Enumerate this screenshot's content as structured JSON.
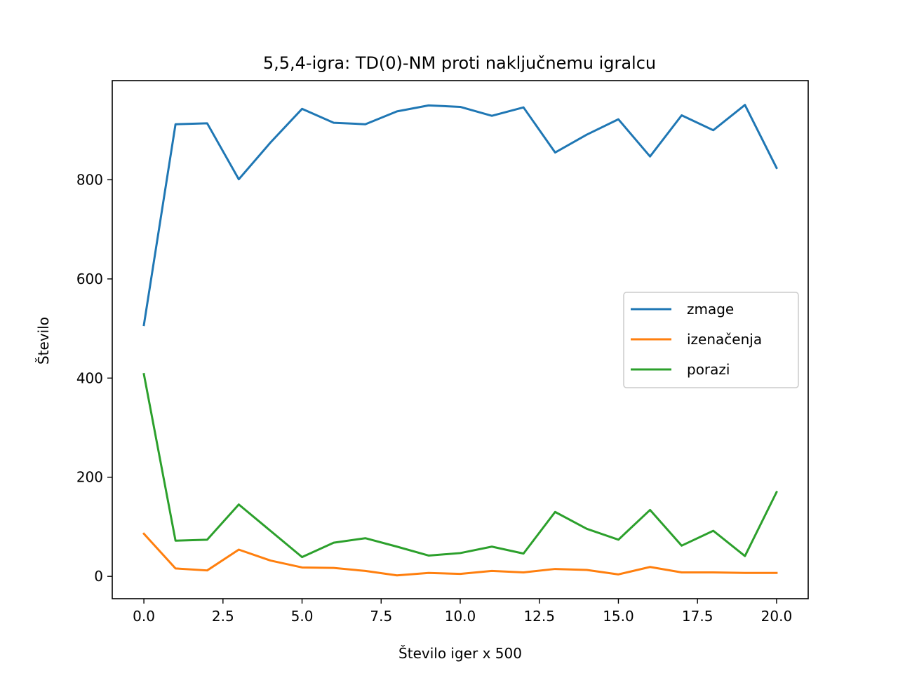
{
  "chart_data": {
    "type": "line",
    "title": "5,5,4-igra: TD(0)-NM proti naključnemu igralcu",
    "xlabel": "Število iger x 500",
    "ylabel": "Število",
    "xlim": [
      -1,
      21
    ],
    "ylim": [
      -45,
      1000
    ],
    "xticks": [
      "0.0",
      "2.5",
      "5.0",
      "7.5",
      "10.0",
      "12.5",
      "15.0",
      "17.5",
      "20.0"
    ],
    "yticks": [
      "0",
      "200",
      "400",
      "600",
      "800"
    ],
    "legend_position": "center-right",
    "grid": false,
    "x": [
      0,
      1,
      2,
      3,
      4,
      5,
      6,
      7,
      8,
      9,
      10,
      11,
      12,
      13,
      14,
      15,
      16,
      17,
      18,
      19,
      20
    ],
    "series": [
      {
        "name": "zmage",
        "color": "#1f77b4",
        "values": [
          507,
          912,
          914,
          801,
          875,
          943,
          915,
          912,
          938,
          950,
          947,
          929,
          946,
          855,
          891,
          922,
          847,
          930,
          900,
          951,
          824
        ]
      },
      {
        "name": "izenačenja",
        "color": "#ff7f0e",
        "values": [
          86,
          16,
          12,
          54,
          32,
          18,
          17,
          11,
          2,
          7,
          5,
          11,
          8,
          15,
          13,
          4,
          19,
          8,
          8,
          7,
          7
        ]
      },
      {
        "name": "porazi",
        "color": "#2ca02c",
        "values": [
          408,
          72,
          74,
          145,
          92,
          39,
          68,
          77,
          60,
          42,
          47,
          60,
          46,
          130,
          96,
          74,
          134,
          62,
          92,
          41,
          170
        ]
      }
    ]
  }
}
